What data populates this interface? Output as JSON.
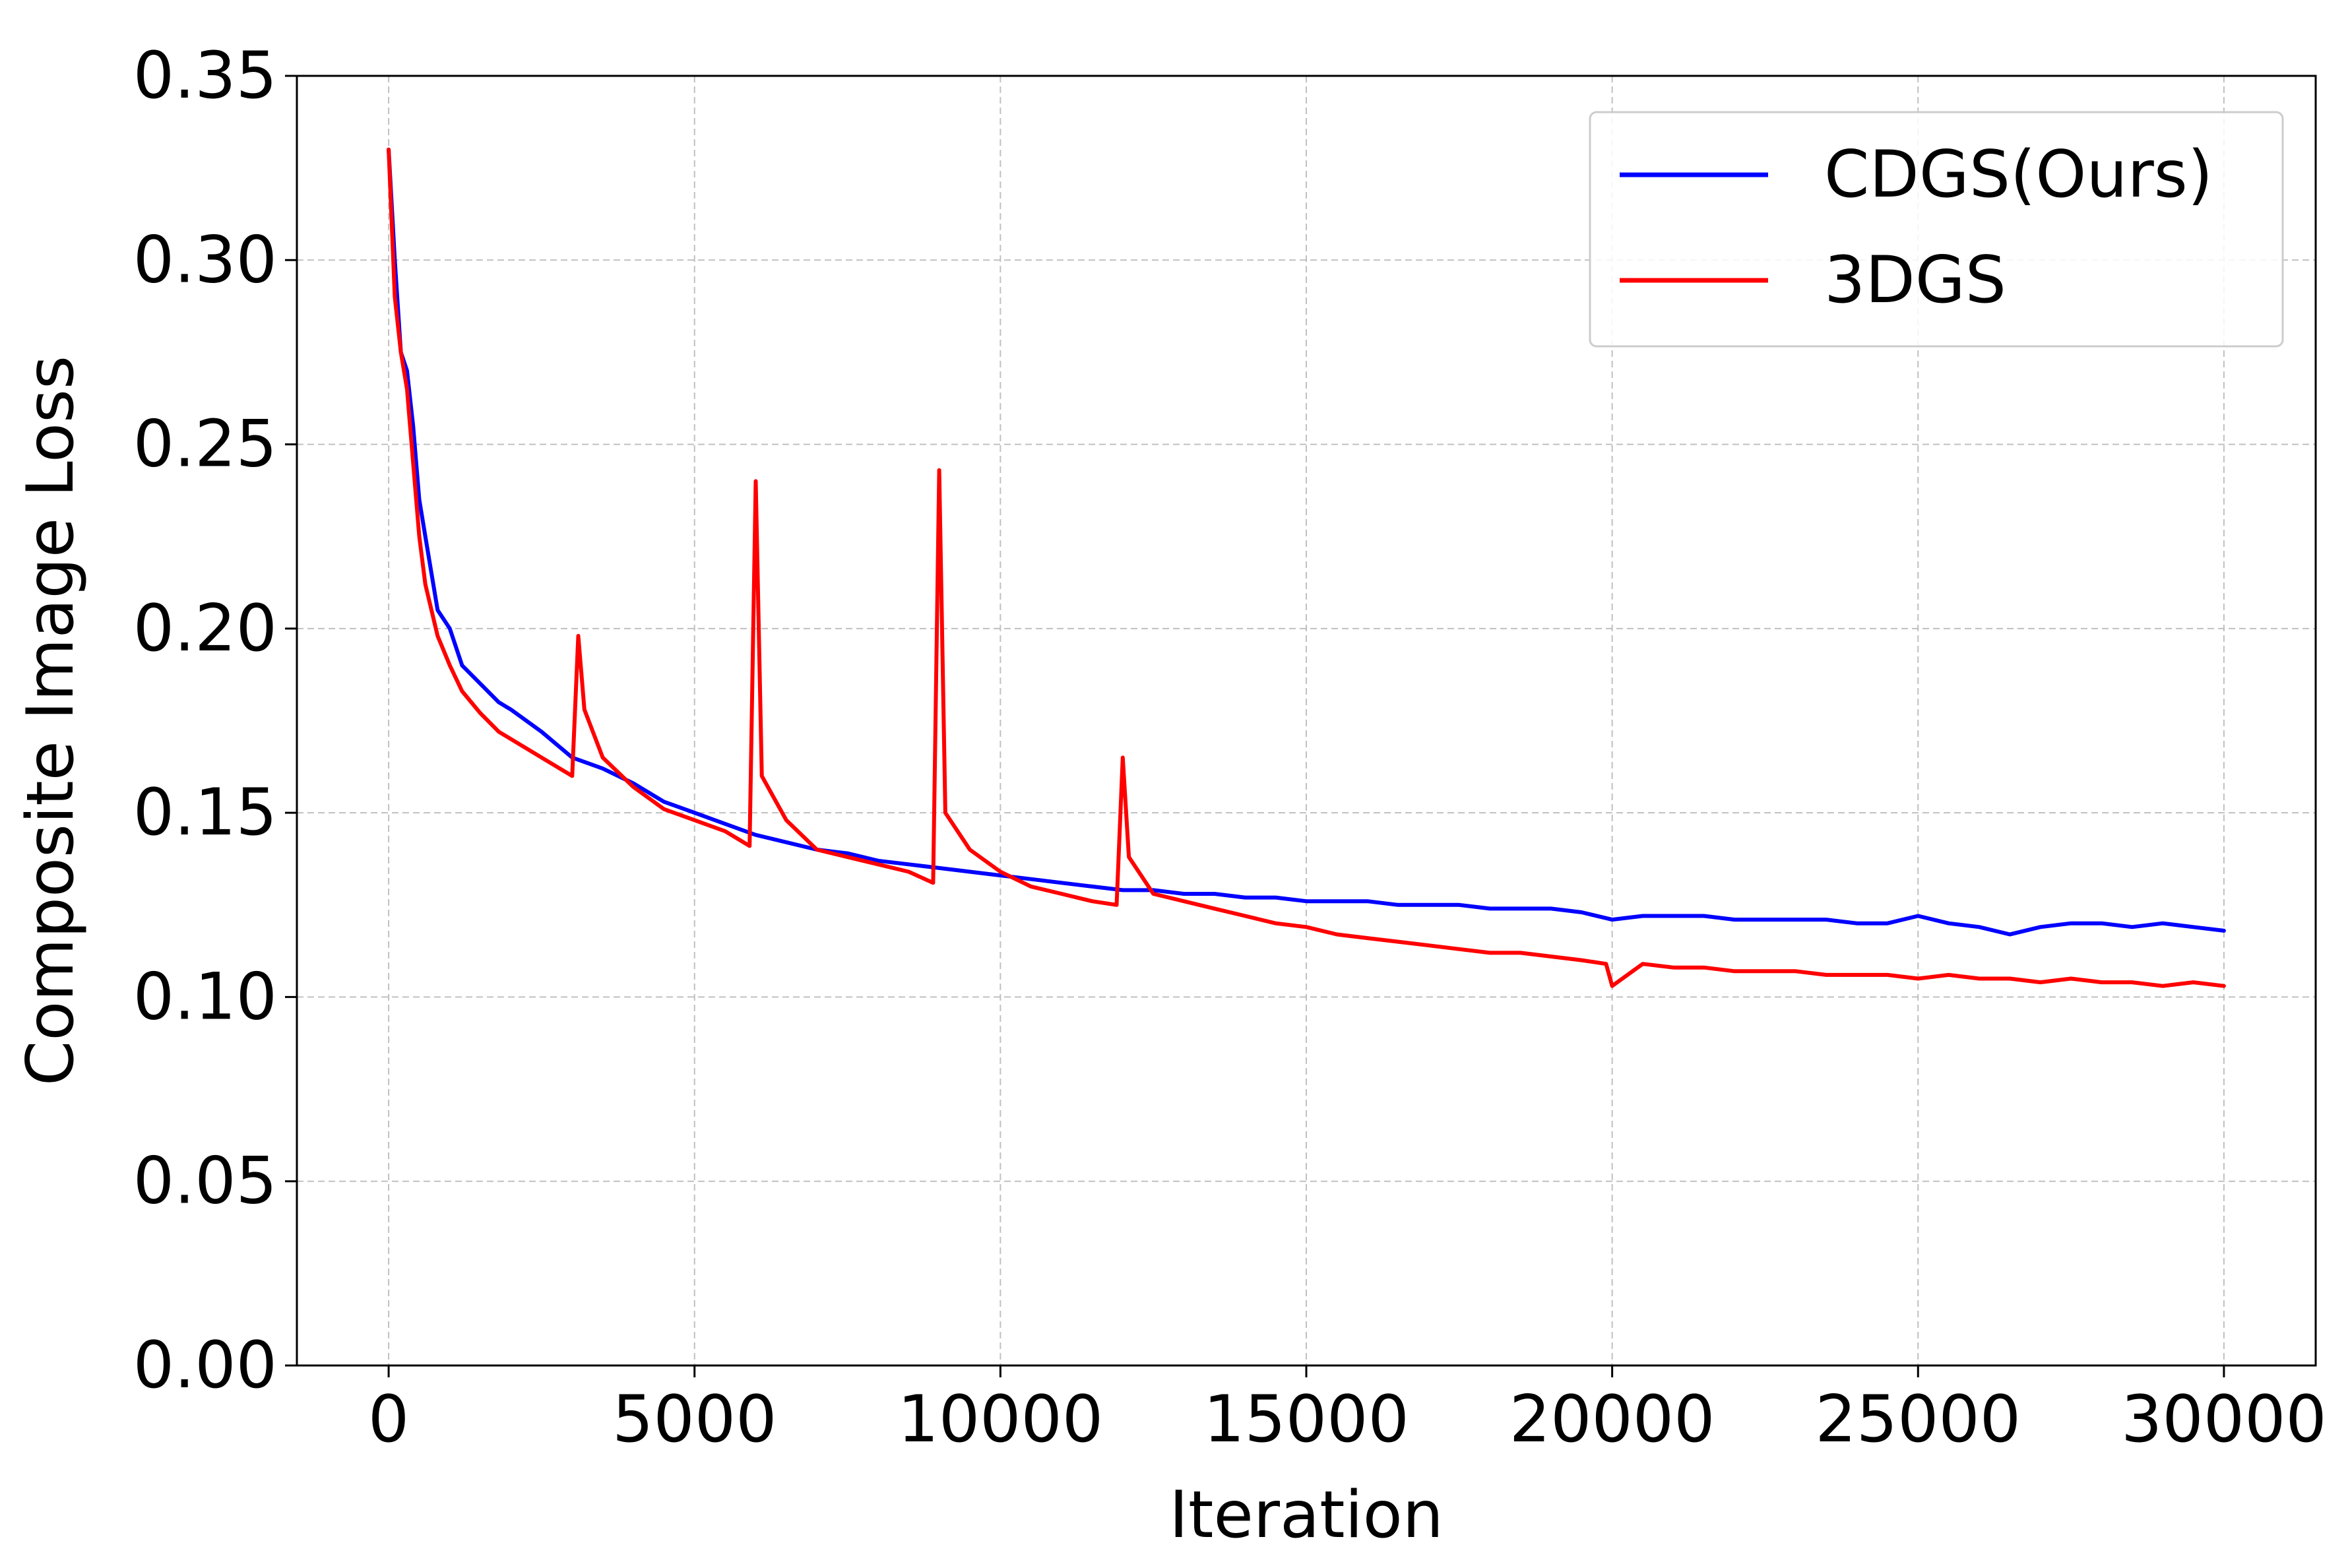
{
  "chart_data": {
    "type": "line",
    "title": "",
    "xlabel": "Iteration",
    "ylabel": "Composite Image Loss",
    "xlim": [
      -1500,
      31500
    ],
    "ylim": [
      0,
      0.35
    ],
    "x_ticks": [
      0,
      5000,
      10000,
      15000,
      20000,
      25000,
      30000
    ],
    "x_tick_labels": [
      "0",
      "5000",
      "10000",
      "15000",
      "20000",
      "25000",
      "30000"
    ],
    "y_ticks": [
      0,
      0.05,
      0.1,
      0.15,
      0.2,
      0.25,
      0.3,
      0.35
    ],
    "y_tick_labels": [
      "0.00",
      "0.05",
      "0.10",
      "0.15",
      "0.20",
      "0.25",
      "0.30",
      "0.35"
    ],
    "grid": true,
    "legend_position": "top-right",
    "series": [
      {
        "name": "CDGS(Ours)",
        "color": "#0000ff",
        "x": [
          0,
          100,
          200,
          300,
          400,
          500,
          600,
          700,
          800,
          1000,
          1200,
          1500,
          1800,
          2000,
          2500,
          3000,
          3500,
          4000,
          4500,
          5000,
          5500,
          6000,
          6500,
          7000,
          7500,
          8000,
          8500,
          9000,
          9500,
          10000,
          10500,
          11000,
          11500,
          12000,
          12500,
          13000,
          13500,
          14000,
          14500,
          15000,
          15500,
          16000,
          16500,
          17000,
          17500,
          18000,
          18500,
          19000,
          19500,
          20000,
          20500,
          21000,
          21500,
          22000,
          22500,
          23000,
          23500,
          24000,
          24500,
          25000,
          25500,
          26000,
          26500,
          27000,
          27500,
          28000,
          28500,
          29000,
          29500,
          30000
        ],
        "y": [
          0.33,
          0.3,
          0.275,
          0.27,
          0.255,
          0.235,
          0.225,
          0.215,
          0.205,
          0.2,
          0.19,
          0.185,
          0.18,
          0.178,
          0.172,
          0.165,
          0.162,
          0.158,
          0.153,
          0.15,
          0.147,
          0.144,
          0.142,
          0.14,
          0.139,
          0.137,
          0.136,
          0.135,
          0.134,
          0.133,
          0.132,
          0.131,
          0.13,
          0.129,
          0.129,
          0.128,
          0.128,
          0.127,
          0.127,
          0.126,
          0.126,
          0.126,
          0.125,
          0.125,
          0.125,
          0.124,
          0.124,
          0.124,
          0.123,
          0.121,
          0.122,
          0.122,
          0.122,
          0.121,
          0.121,
          0.121,
          0.121,
          0.12,
          0.12,
          0.122,
          0.12,
          0.119,
          0.117,
          0.119,
          0.12,
          0.12,
          0.119,
          0.12,
          0.119,
          0.118
        ]
      },
      {
        "name": "3DGS",
        "color": "#ff0000",
        "x": [
          0,
          100,
          200,
          300,
          400,
          500,
          600,
          700,
          800,
          1000,
          1200,
          1500,
          1800,
          2000,
          2500,
          3000,
          3100,
          3200,
          3500,
          4000,
          4500,
          5000,
          5500,
          5900,
          6000,
          6100,
          6500,
          7000,
          7500,
          8000,
          8500,
          8900,
          9000,
          9100,
          9500,
          10000,
          10500,
          11000,
          11500,
          11900,
          12000,
          12100,
          12500,
          13000,
          13500,
          14000,
          14500,
          15000,
          15500,
          16000,
          16500,
          17000,
          17500,
          18000,
          18500,
          19000,
          19500,
          19900,
          20000,
          20500,
          21000,
          21500,
          22000,
          22500,
          23000,
          23500,
          24000,
          24500,
          25000,
          25500,
          26000,
          26500,
          27000,
          27500,
          28000,
          28500,
          29000,
          29500,
          30000
        ],
        "y": [
          0.33,
          0.29,
          0.275,
          0.265,
          0.245,
          0.225,
          0.212,
          0.205,
          0.198,
          0.19,
          0.183,
          0.177,
          0.172,
          0.17,
          0.165,
          0.16,
          0.198,
          0.178,
          0.165,
          0.157,
          0.151,
          0.148,
          0.145,
          0.141,
          0.24,
          0.16,
          0.148,
          0.14,
          0.138,
          0.136,
          0.134,
          0.131,
          0.243,
          0.15,
          0.14,
          0.134,
          0.13,
          0.128,
          0.126,
          0.125,
          0.165,
          0.138,
          0.128,
          0.126,
          0.124,
          0.122,
          0.12,
          0.119,
          0.117,
          0.116,
          0.115,
          0.114,
          0.113,
          0.112,
          0.112,
          0.111,
          0.11,
          0.109,
          0.103,
          0.109,
          0.108,
          0.108,
          0.107,
          0.107,
          0.107,
          0.106,
          0.106,
          0.106,
          0.105,
          0.106,
          0.105,
          0.105,
          0.104,
          0.105,
          0.104,
          0.104,
          0.103,
          0.104,
          0.103
        ]
      }
    ]
  }
}
